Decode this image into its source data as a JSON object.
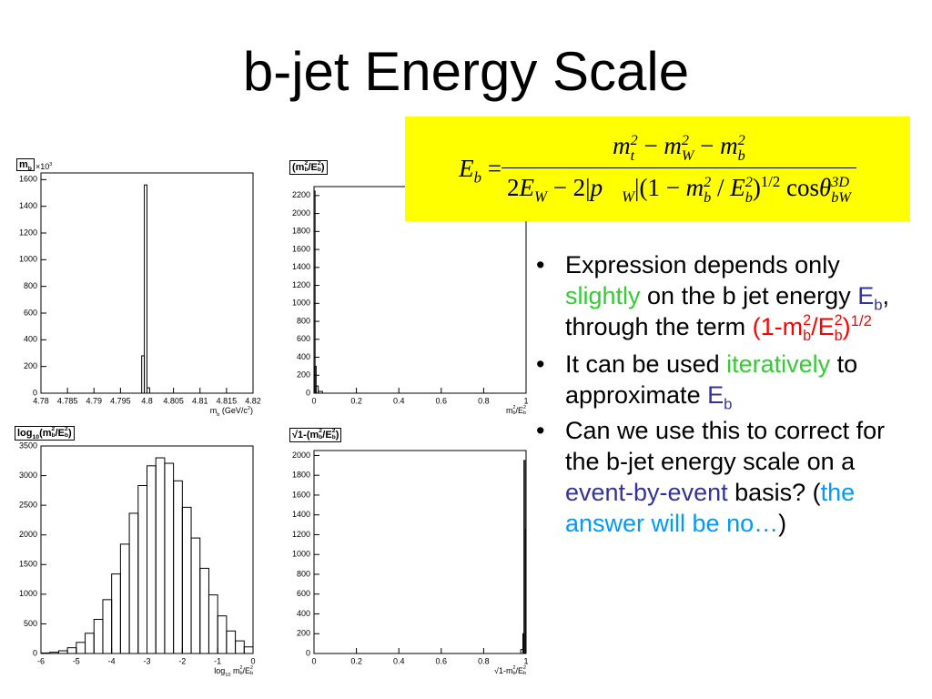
{
  "title": "b-jet Energy Scale",
  "formula": {
    "lhs": [
      {
        "t": "E",
        "sub": "b",
        "italic": true
      },
      {
        "t": " = "
      }
    ],
    "numerator": [
      {
        "t": "m",
        "sup": "2",
        "sub": "t",
        "italic": true
      },
      {
        "t": " − "
      },
      {
        "t": "m",
        "sup": "2",
        "sub": "W",
        "italic": true
      },
      {
        "t": " − "
      },
      {
        "t": "m",
        "sup": "2",
        "sub": "b",
        "italic": true
      }
    ],
    "denominator": [
      {
        "t": "2"
      },
      {
        "t": "E",
        "sub": "W",
        "italic": true
      },
      {
        "t": " − 2|"
      },
      {
        "t": "p⃗",
        "sub": "W",
        "italic": true
      },
      {
        "t": "|(1 − "
      },
      {
        "t": "m",
        "sup": "2",
        "sub": "b",
        "italic": true
      },
      {
        "t": " / "
      },
      {
        "t": "E",
        "sup": "2",
        "sub": "b",
        "italic": true
      },
      {
        "t": ")",
        "sup": "1/2"
      },
      {
        "t": " cos"
      },
      {
        "t": "θ",
        "sup": "3D",
        "sub": "bW",
        "italic": true
      }
    ]
  },
  "chart_data": [
    {
      "type": "histogram",
      "color": "#000000",
      "label": [
        {
          "t": "m",
          "sub": "b"
        }
      ],
      "multiplier": [
        {
          "t": "×10",
          "sup": "3"
        }
      ],
      "xlabel": [
        {
          "t": "m",
          "sub": "b"
        },
        {
          "t": " (GeV/c",
          "sup": "2"
        },
        {
          "t": ")"
        }
      ],
      "bins": [
        4.78,
        4.799,
        4.7995,
        4.8,
        4.8005,
        4.82
      ],
      "counts": [
        0,
        280,
        1560,
        40,
        0
      ],
      "xlim": [
        4.78,
        4.82
      ],
      "ylim": [
        0,
        1650
      ],
      "xticks": [
        4.78,
        4.785,
        4.79,
        4.795,
        4.8,
        4.805,
        4.81,
        4.815,
        4.82
      ],
      "yticks": [
        0,
        200,
        400,
        600,
        800,
        1000,
        1200,
        1400,
        1600
      ]
    },
    {
      "type": "histogram",
      "color": "#000000",
      "label": [
        {
          "t": "(m",
          "sup": "2",
          "sub": "b"
        },
        {
          "t": "/E",
          "sup": "2",
          "sub": "b"
        },
        {
          "t": ")"
        }
      ],
      "xlabel": [
        {
          "t": "m",
          "sup": "2",
          "sub": "b"
        },
        {
          "t": "/E",
          "sup": "2",
          "sub": "b"
        }
      ],
      "bins": [
        0,
        0.005,
        0.01,
        0.02,
        0.04,
        1
      ],
      "counts": [
        2250,
        300,
        80,
        20,
        0
      ],
      "xlim": [
        0,
        1
      ],
      "ylim": [
        0,
        2300
      ],
      "xticks": [
        0,
        0.2,
        0.4,
        0.6,
        0.8,
        1
      ],
      "yticks": [
        0,
        200,
        400,
        600,
        800,
        1000,
        1200,
        1400,
        1600,
        1800,
        2000,
        2200
      ]
    },
    {
      "type": "histogram",
      "color": "#000000",
      "label": [
        {
          "t": "log",
          "sub": "10"
        },
        {
          "t": "(m",
          "sup": "2",
          "sub": "b"
        },
        {
          "t": "/E",
          "sup": "2",
          "sub": "b"
        },
        {
          "t": ")"
        }
      ],
      "xlabel": [
        {
          "t": "log",
          "sub": "10"
        },
        {
          "t": " m",
          "sup": "2",
          "sub": "b"
        },
        {
          "t": "/E",
          "sup": "2",
          "sub": "b"
        }
      ],
      "bins": [
        -6,
        -5.75,
        -5.5,
        -5.25,
        -5,
        -4.75,
        -4.5,
        -4.25,
        -4,
        -3.75,
        -3.5,
        -3.25,
        -3,
        -2.75,
        -2.5,
        -2.25,
        -2,
        -1.75,
        -1.5,
        -1.25,
        -1,
        -0.75,
        -0.5,
        -0.25,
        0
      ],
      "counts": [
        9,
        21,
        46,
        97,
        187,
        341,
        576,
        908,
        1341,
        1844,
        2365,
        2832,
        3165,
        3300,
        3208,
        2912,
        2466,
        1948,
        1437,
        988,
        634,
        380,
        213,
        111
      ],
      "xlim": [
        -6,
        0
      ],
      "ylim": [
        0,
        3500
      ],
      "xticks": [
        -6,
        -5,
        -4,
        -3,
        -2,
        -1,
        0
      ],
      "yticks": [
        0,
        500,
        1000,
        1500,
        2000,
        2500,
        3000,
        3500
      ]
    },
    {
      "type": "histogram",
      "color": "#000000",
      "label": [
        {
          "t": "√1-(m",
          "sup": "2",
          "sub": "b"
        },
        {
          "t": "/E",
          "sup": "2",
          "sub": "b"
        },
        {
          "t": ")"
        }
      ],
      "xlabel": [
        {
          "t": "√1-m",
          "sup": "2",
          "sub": "b"
        },
        {
          "t": "/E",
          "sup": "2",
          "sub": "b"
        }
      ],
      "bins": [
        0,
        0.975,
        0.985,
        0.99,
        0.995,
        1
      ],
      "counts": [
        0,
        40,
        200,
        1950,
        1250
      ],
      "xlim": [
        0,
        1
      ],
      "ylim": [
        0,
        2050
      ],
      "xticks": [
        0,
        0.2,
        0.4,
        0.6,
        0.8,
        1
      ],
      "yticks": [
        0,
        200,
        400,
        600,
        800,
        1000,
        1200,
        1400,
        1600,
        1800,
        2000
      ]
    }
  ],
  "bullets": [
    [
      {
        "t": "Expression depends only "
      },
      {
        "t": "slightly",
        "color": "#33cc33"
      },
      {
        "t": " on the b jet energy "
      },
      {
        "t": "E",
        "sub": "b",
        "color": "#333399"
      },
      {
        "t": ", through the term "
      },
      {
        "t": "(1-m",
        "sub": "b",
        "sup": "2",
        "color": "#ff0000"
      },
      {
        "t": "/E",
        "sub": "b",
        "sup": "2",
        "color": "#ff0000"
      },
      {
        "t": ")",
        "sup": "1/2",
        "color": "#ff0000"
      }
    ],
    [
      {
        "t": "It can be used "
      },
      {
        "t": "iteratively",
        "color": "#33cc33"
      },
      {
        "t": " to approximate "
      },
      {
        "t": "E",
        "sub": "b",
        "color": "#333399"
      }
    ],
    [
      {
        "t": "Can we use this to correct for the b-jet energy scale on a "
      },
      {
        "t": "event-by-event",
        "color": "#333399"
      },
      {
        "t": " basis? ("
      },
      {
        "t": "the answer will be no…",
        "color": "#0099ff"
      },
      {
        "t": ")"
      }
    ]
  ]
}
